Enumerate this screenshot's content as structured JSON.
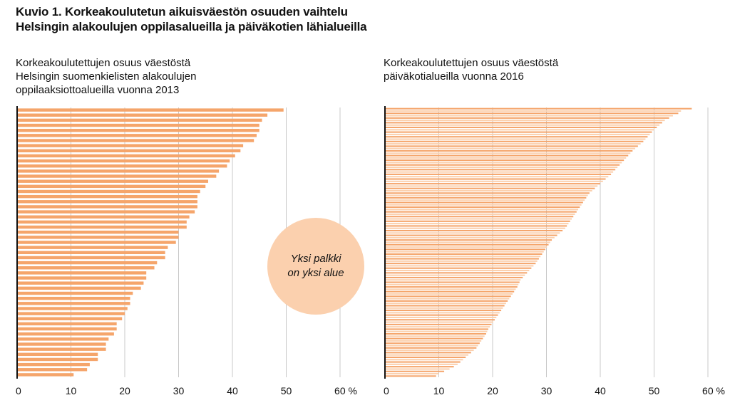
{
  "title": {
    "line1": "Kuvio 1. Korkeakoulutetun aikuisväestön osuuden vaihtelu",
    "line2": "Helsingin alakoulujen oppilasalueilla ja päiväkotien lähialueilla"
  },
  "annotation": {
    "line1": "Yksi palkki",
    "line2": "on yksi alue"
  },
  "colors": {
    "bar": "#f5a56b",
    "bar_light": "#fbd0ae",
    "bubble": "#fbd0ae",
    "axis": "#111111",
    "grid": "#c8c8c8"
  },
  "chart_data": [
    {
      "type": "bar",
      "orientation": "horizontal",
      "subtitle": [
        "Korkeakoulutettujen osuus väestöstä",
        "Helsingin suomenkielisten alakoulujen",
        "oppilaaksiottoalueilla vuonna 2013"
      ],
      "xlabel": "",
      "xlim": [
        0,
        65
      ],
      "ticks": [
        0,
        10,
        20,
        30,
        40,
        50,
        60
      ],
      "tick_labels": [
        "0",
        "10",
        "20",
        "30",
        "40",
        "50",
        "60 %"
      ],
      "grid": true,
      "values": [
        49.5,
        46.5,
        45.5,
        45.0,
        45.0,
        44.5,
        44.0,
        42.0,
        41.5,
        40.5,
        39.5,
        39.0,
        37.5,
        37.0,
        35.5,
        35.0,
        34.0,
        33.5,
        33.5,
        33.5,
        33.0,
        32.0,
        31.5,
        31.5,
        30.0,
        30.0,
        29.5,
        28.0,
        27.5,
        27.5,
        26.0,
        25.5,
        24.0,
        24.0,
        23.5,
        23.0,
        21.5,
        21.0,
        21.0,
        20.5,
        20.0,
        19.5,
        18.5,
        18.5,
        18.0,
        17.0,
        16.5,
        16.5,
        15.0,
        15.0,
        13.5,
        13.0,
        10.5
      ]
    },
    {
      "type": "bar",
      "orientation": "horizontal",
      "subtitle": [
        "Korkeakoulutettujen osuus väestöstä",
        "päiväkotialueilla vuonna 2016"
      ],
      "xlabel": "",
      "xlim": [
        0,
        65
      ],
      "ticks": [
        0,
        10,
        20,
        30,
        40,
        50,
        60
      ],
      "tick_labels": [
        "0",
        "10",
        "20",
        "30",
        "40",
        "50",
        "60 %"
      ],
      "grid": true,
      "values": [
        57.0,
        55.0,
        54.5,
        53.5,
        52.8,
        52.0,
        51.5,
        51.0,
        50.5,
        50.0,
        49.6,
        49.2,
        48.8,
        48.4,
        48.0,
        47.5,
        47.0,
        46.5,
        46.0,
        45.6,
        45.2,
        44.8,
        44.4,
        44.0,
        43.6,
        43.2,
        42.8,
        42.4,
        42.0,
        41.5,
        41.0,
        40.5,
        40.0,
        39.5,
        39.0,
        38.5,
        38.0,
        37.7,
        37.4,
        37.1,
        36.8,
        36.5,
        36.2,
        35.9,
        35.6,
        35.3,
        35.0,
        34.7,
        34.4,
        34.1,
        33.8,
        33.5,
        33.0,
        32.5,
        32.0,
        31.5,
        31.0,
        30.7,
        30.4,
        30.1,
        29.8,
        29.5,
        29.2,
        28.9,
        28.6,
        28.3,
        28.0,
        27.6,
        27.2,
        26.8,
        26.4,
        26.0,
        25.6,
        25.2,
        25.0,
        24.8,
        24.6,
        24.3,
        24.0,
        23.7,
        23.4,
        23.1,
        22.8,
        22.5,
        22.2,
        21.9,
        21.6,
        21.3,
        21.0,
        20.7,
        20.4,
        20.1,
        19.8,
        19.5,
        19.2,
        19.0,
        18.8,
        18.5,
        18.2,
        17.9,
        17.6,
        17.3,
        17.0,
        16.5,
        16.0,
        15.5,
        15.0,
        14.5,
        14.0,
        13.5,
        12.8,
        12.0,
        11.0,
        10.0,
        9.5
      ]
    }
  ]
}
